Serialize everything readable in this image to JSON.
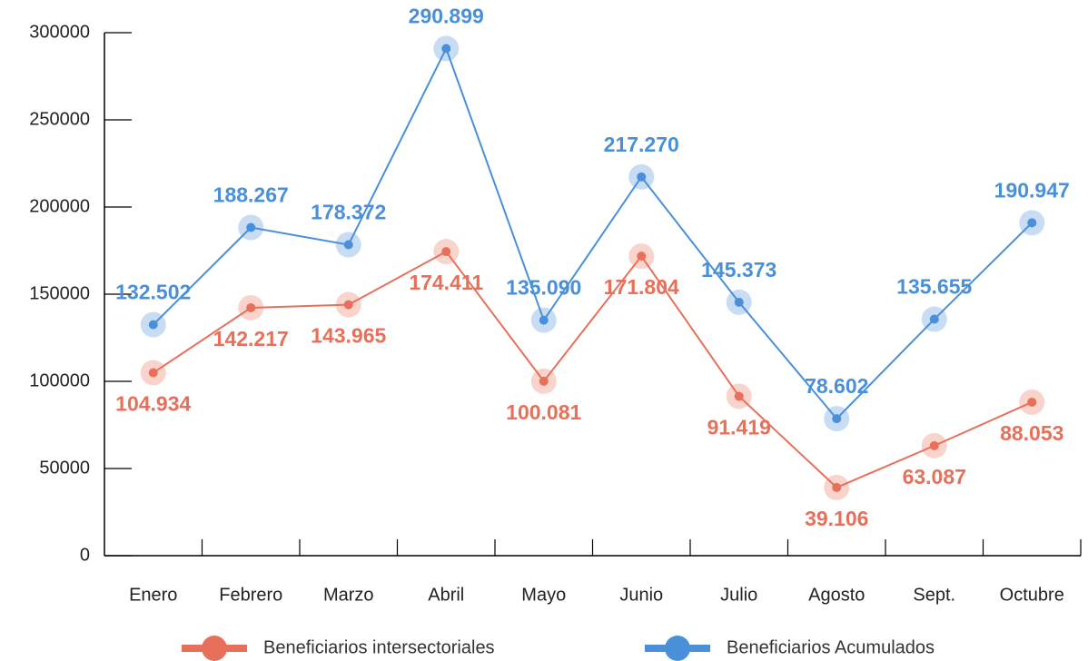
{
  "chart_data": {
    "type": "line",
    "categories": [
      "Enero",
      "Febrero",
      "Marzo",
      "Abril",
      "Mayo",
      "Junio",
      "Julio",
      "Agosto",
      "Sept.",
      "Octubre"
    ],
    "series": [
      {
        "name": "Beneficiarios intersectoriales",
        "color": "#e8705a",
        "values": [
          104934,
          142217,
          143965,
          174411,
          100081,
          171804,
          91419,
          39106,
          63087,
          88053
        ],
        "value_labels": [
          "104.934",
          "142.217",
          "143.965",
          "174.411",
          "100.081",
          "171.804",
          "91.419",
          "39.106",
          "63.087",
          "88.053"
        ]
      },
      {
        "name": "Beneficiarios Acumulados",
        "color": "#4a90d9",
        "values": [
          132502,
          188267,
          178372,
          290899,
          135090,
          217270,
          145373,
          78602,
          135655,
          190947
        ],
        "value_labels": [
          "132.502",
          "188.267",
          "178.372",
          "290.899",
          "135.090",
          "217.270",
          "145.373",
          "78.602",
          "135.655",
          "190.947"
        ]
      }
    ],
    "ylim": [
      0,
      300000
    ],
    "yticks": [
      0,
      50000,
      100000,
      150000,
      200000,
      250000,
      300000
    ],
    "legend": "bottom"
  }
}
